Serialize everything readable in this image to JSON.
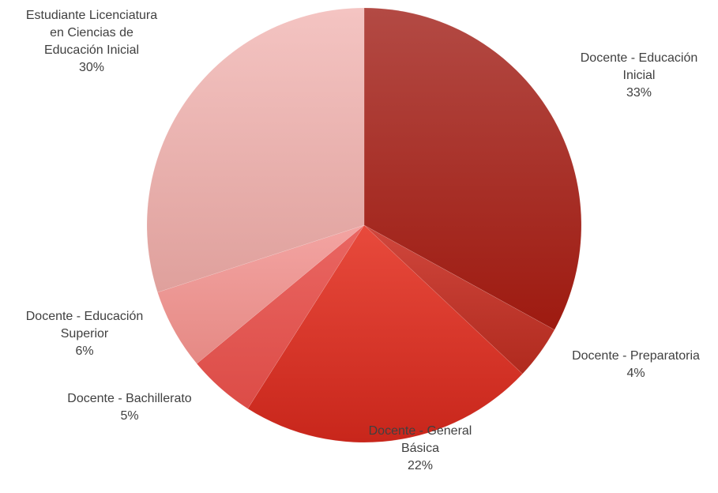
{
  "chart_data": {
    "type": "pie",
    "title": "",
    "start": "12 o'clock",
    "direction": "clockwise",
    "slices": [
      {
        "label_lines": [
          "Docente - Educación",
          "Inicial"
        ],
        "value": 33,
        "value_label": "33%",
        "color_light": "#b34a44",
        "color_dark": "#9e1a10"
      },
      {
        "label_lines": [
          "Docente - Preparatoria"
        ],
        "value": 4,
        "value_label": "4%",
        "color_light": "#d0473d",
        "color_dark": "#b02a1e"
      },
      {
        "label_lines": [
          "Docente - General",
          "Básica"
        ],
        "value": 22,
        "value_label": "22%",
        "color_light": "#e84a3c",
        "color_dark": "#c8261b"
      },
      {
        "label_lines": [
          "Docente - Bachillerato"
        ],
        "value": 5,
        "value_label": "5%",
        "color_light": "#ea6662",
        "color_dark": "#dc4c47"
      },
      {
        "label_lines": [
          "Docente - Educación",
          "Superior"
        ],
        "value": 6,
        "value_label": "6%",
        "color_light": "#f3a4a2",
        "color_dark": "#e58984"
      },
      {
        "label_lines": [
          "Estudiante Licenciatura",
          "en Ciencias de",
          "Educación Inicial"
        ],
        "value": 30,
        "value_label": "30%",
        "color_light": "#f4c4c2",
        "color_dark": "#dfa09c"
      }
    ]
  }
}
